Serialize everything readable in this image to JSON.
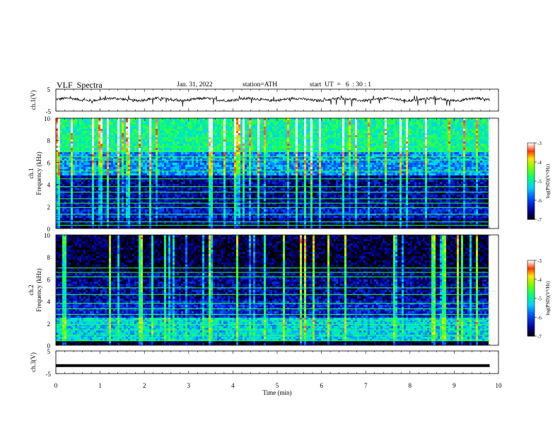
{
  "header": {
    "title": "VLF  Spectra",
    "date": "Jan. 31, 2022",
    "station": "station=ATH",
    "start": "start  UT  =   6  : 30 : 1"
  },
  "chart_data": [
    {
      "type": "line",
      "title": "VLF  Spectra",
      "ylabel": "ch.1(V)",
      "yticks": [
        "5",
        "-5"
      ],
      "ylim": [
        -5,
        5
      ],
      "xlim": [
        0,
        10
      ],
      "series": [
        {
          "x_range": [
            0,
            9.8
          ],
          "baseline": 0.3,
          "noise_amplitude": 1.2,
          "spikes": "intermittent spikes to about +2 V and -3 V"
        }
      ],
      "color": "#000000"
    },
    {
      "type": "heatmap",
      "ylabel_lines": [
        "ch.1",
        "Frequency  (kHz)"
      ],
      "yticks": [
        "0",
        "2",
        "4",
        "6",
        "8",
        "10"
      ],
      "ylim": [
        0,
        10
      ],
      "xlim": [
        0,
        10
      ],
      "data_x_range": [
        0,
        9.8
      ],
      "colorbar": {
        "label": "log(PSD)(V²/Hz)",
        "ticks": [
          "-3",
          "-4",
          "-5",
          "-6",
          "-7"
        ],
        "range": [
          -7,
          -3
        ]
      },
      "bands_khz": [
        {
          "range": [
            0,
            0.3
          ],
          "level": -6.9
        },
        {
          "range": [
            0.3,
            1.0
          ],
          "level": -6.6
        },
        {
          "range": [
            1.0,
            2.0
          ],
          "level": -6.2
        },
        {
          "range": [
            2.0,
            4.9
          ],
          "level": -6.5
        },
        {
          "range": [
            4.9,
            7.0
          ],
          "level": -5.6
        },
        {
          "range": [
            7.0,
            10.0
          ],
          "level": -4.9
        }
      ],
      "narrowband_lines_khz": [
        0.3,
        0.6,
        1.3,
        1.9,
        2.3,
        2.7,
        3.3,
        3.8,
        4.5,
        5.2,
        6.2,
        6.5,
        7.0,
        7.4,
        8.2
      ]
    },
    {
      "type": "heatmap",
      "ylabel_lines": [
        "ch.2",
        "Frequency  (kHz)"
      ],
      "yticks": [
        "0",
        "2",
        "4",
        "6",
        "8",
        "10"
      ],
      "ylim": [
        0,
        10
      ],
      "xlim": [
        0,
        10
      ],
      "data_x_range": [
        0,
        9.8
      ],
      "colorbar": {
        "label": "log(PSD)(V²/Hz)",
        "ticks": [
          "-3",
          "-4",
          "-5",
          "-6",
          "-7"
        ],
        "range": [
          -7,
          -3
        ]
      },
      "bands_khz": [
        {
          "range": [
            0,
            0.3
          ],
          "level": -6.9
        },
        {
          "range": [
            0.3,
            2.5
          ],
          "level": -5.3
        },
        {
          "range": [
            2.5,
            4.0
          ],
          "level": -6.2
        },
        {
          "range": [
            4.0,
            6.5
          ],
          "level": -6.5
        },
        {
          "range": [
            6.5,
            10.0
          ],
          "level": -6.8
        }
      ],
      "narrowband_lines_khz": [
        0.4,
        0.9,
        1.4,
        1.9,
        2.3,
        2.8,
        3.3,
        3.8,
        4.6,
        5.2,
        6.2,
        6.6,
        7.0
      ]
    },
    {
      "type": "line",
      "ylabel": "ch.3(V)",
      "yticks": [
        "5",
        "-5"
      ],
      "ylim": [
        -5,
        5
      ],
      "xlim": [
        0,
        10
      ],
      "xlabel": "Time  (min)",
      "xticks": [
        "0",
        "1",
        "2",
        "3",
        "4",
        "5",
        "6",
        "7",
        "8",
        "9",
        "10"
      ],
      "series": [
        {
          "x_range": [
            0,
            9.8
          ],
          "value": -1.5
        }
      ],
      "color": "#000000"
    }
  ]
}
